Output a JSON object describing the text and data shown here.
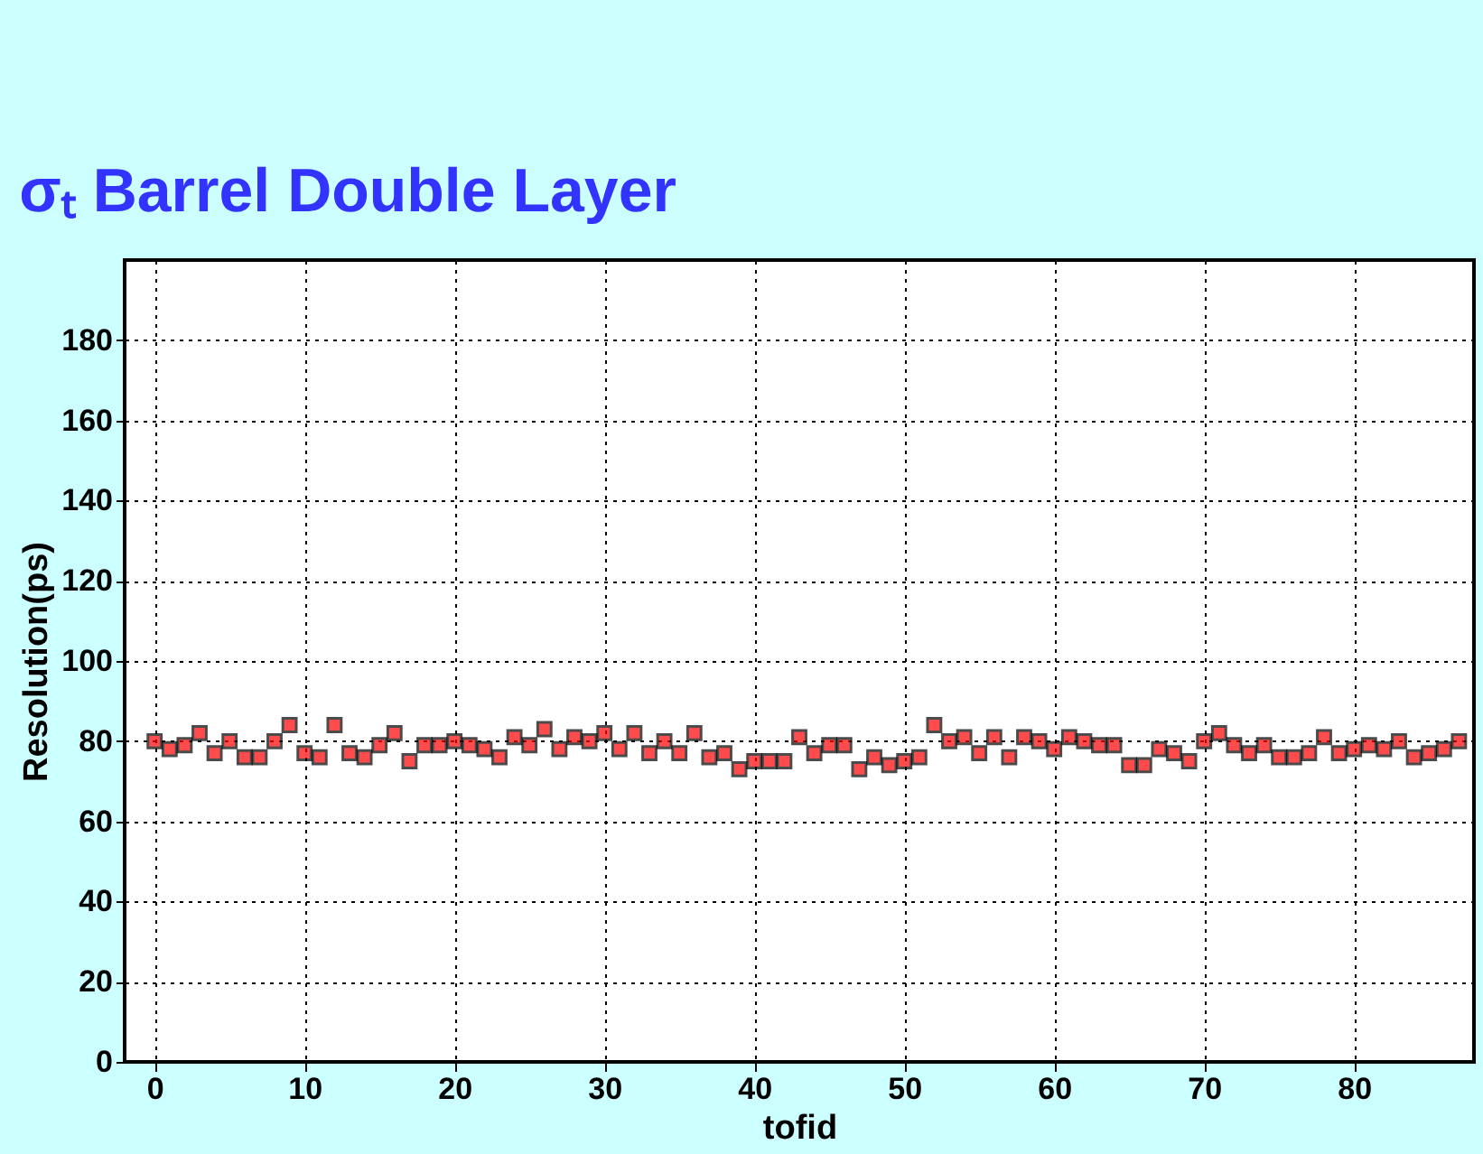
{
  "chart_data": {
    "type": "scatter",
    "title": "σₜ Barrel Double Layer",
    "xlabel": "tofid",
    "ylabel": "Resolution(ps)",
    "x": [
      0,
      1,
      2,
      3,
      4,
      5,
      6,
      7,
      8,
      9,
      10,
      11,
      12,
      13,
      14,
      15,
      16,
      17,
      18,
      19,
      20,
      21,
      22,
      23,
      24,
      25,
      26,
      27,
      28,
      29,
      30,
      31,
      32,
      33,
      34,
      35,
      36,
      37,
      38,
      39,
      40,
      41,
      42,
      43,
      44,
      45,
      46,
      47,
      48,
      49,
      50,
      51,
      52,
      53,
      54,
      55,
      56,
      57,
      58,
      59,
      60,
      61,
      62,
      63,
      64,
      65,
      66,
      67,
      68,
      69,
      70,
      71,
      72,
      73,
      74,
      75,
      76,
      77,
      78,
      79,
      80,
      81,
      82,
      83,
      84,
      85,
      86,
      87
    ],
    "series": [
      {
        "color": "#ff0000",
        "values": [
          80,
          78,
          79,
          82,
          77,
          80,
          76,
          76,
          80,
          84,
          77,
          76,
          84,
          77,
          76,
          79,
          82,
          75,
          79,
          79,
          80,
          79,
          78,
          76,
          81,
          79,
          83,
          78,
          81,
          80,
          82,
          78,
          82,
          77,
          80,
          77,
          82,
          76,
          77,
          73,
          75,
          75,
          75,
          81,
          77,
          79,
          79,
          73,
          76,
          74,
          75,
          76,
          84,
          80,
          81,
          77,
          81,
          76,
          81,
          80,
          78,
          81,
          80,
          79,
          79,
          74,
          74,
          78,
          77,
          75,
          80,
          82,
          79,
          77,
          79,
          76,
          76,
          77,
          81,
          77,
          78,
          79,
          78,
          80,
          76,
          77,
          78,
          80
        ]
      }
    ],
    "xlim": [
      -2,
      88
    ],
    "ylim": [
      0,
      200
    ],
    "xticks": [
      0,
      10,
      20,
      30,
      40,
      50,
      60,
      70,
      80
    ],
    "yticks": [
      0,
      20,
      40,
      60,
      80,
      100,
      120,
      140,
      160,
      180
    ],
    "grid": true,
    "marker": "square"
  }
}
